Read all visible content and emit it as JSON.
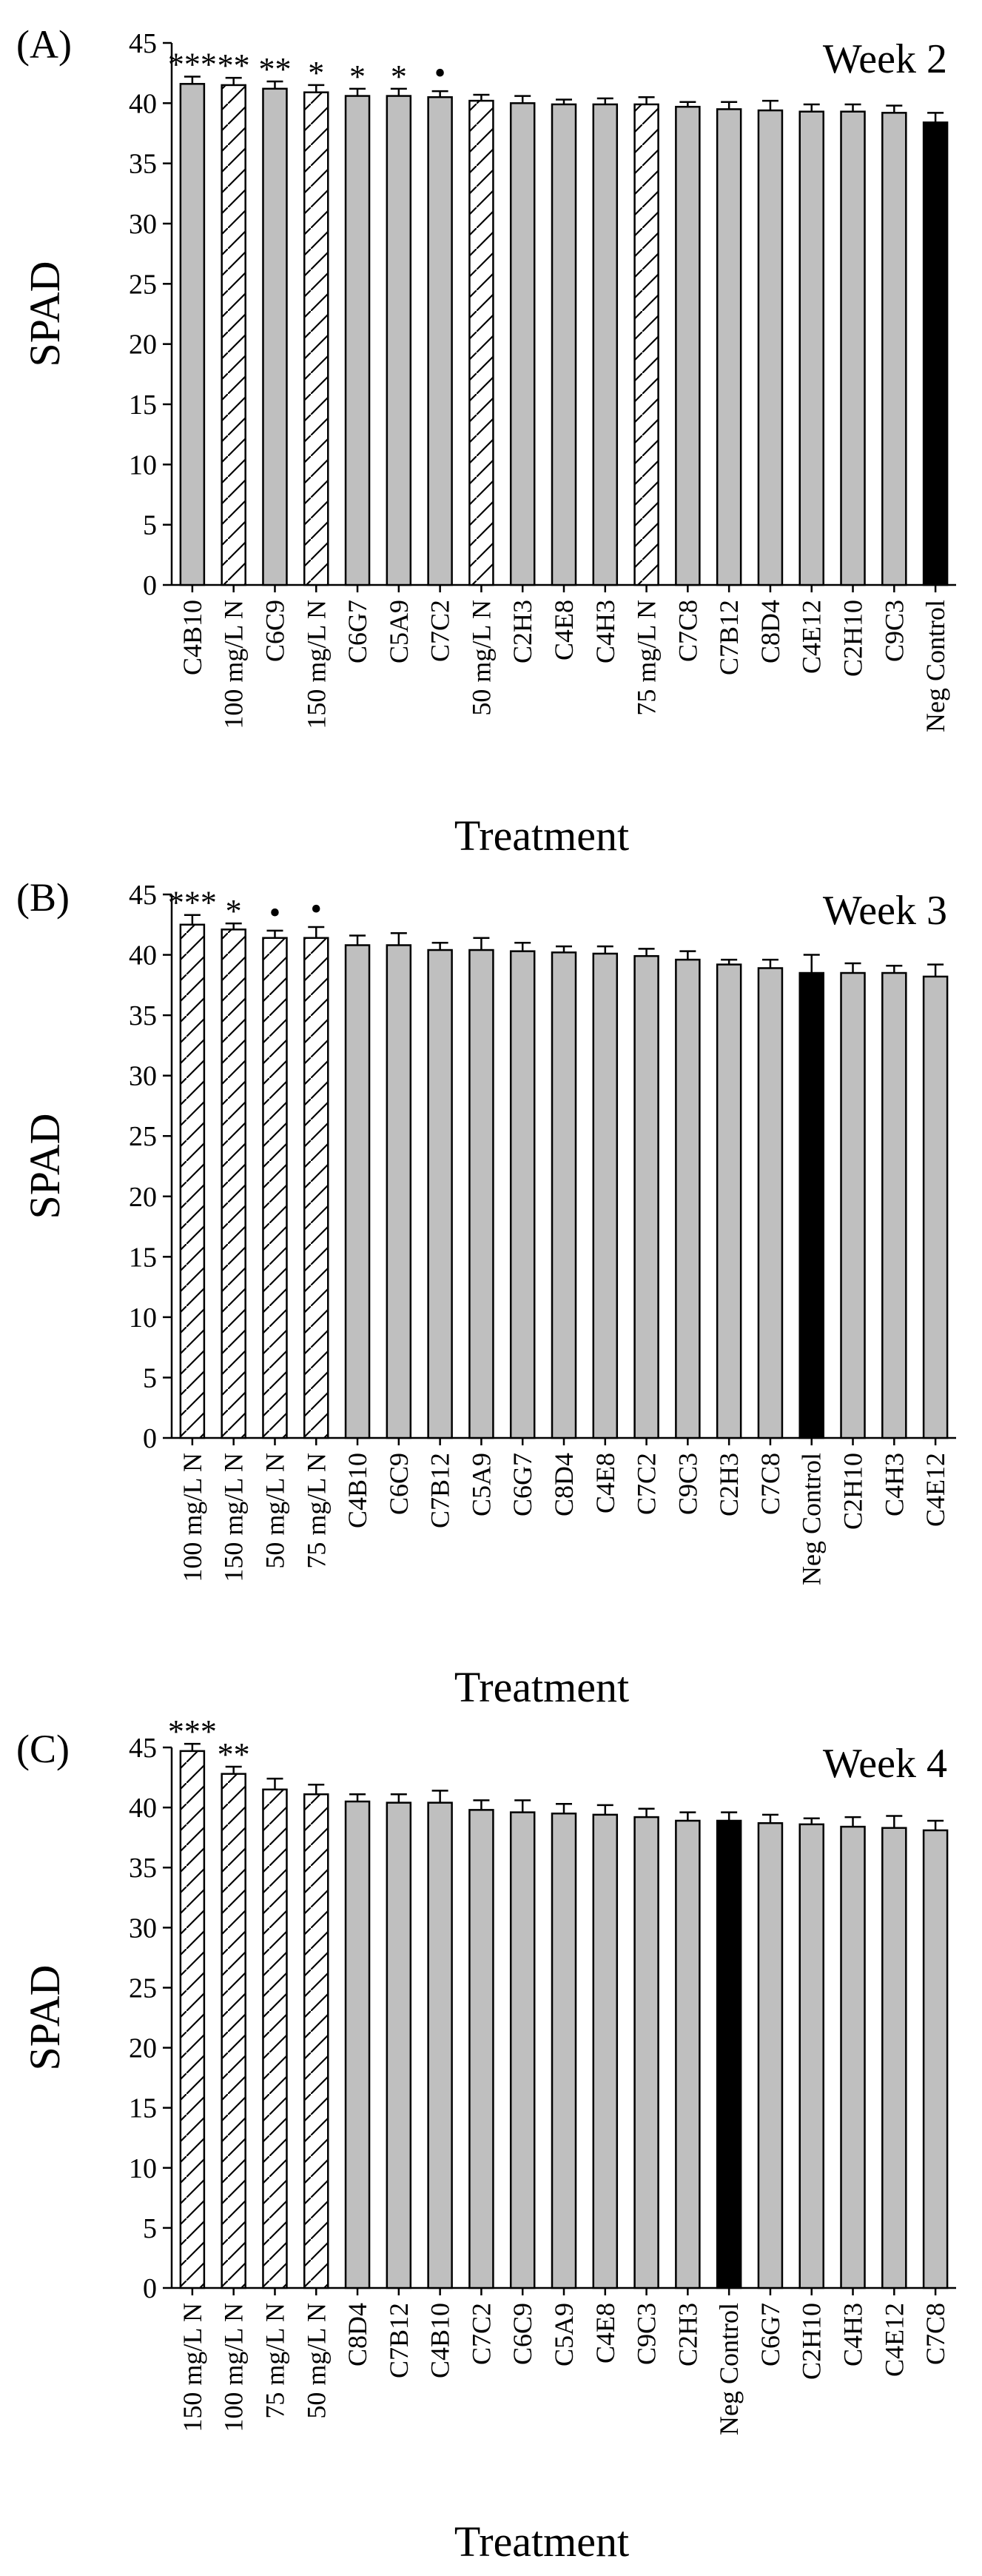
{
  "chart_data": [
    {
      "type": "bar",
      "panel_label": "(A)",
      "title": "Week 2",
      "xlabel": "Treatment",
      "ylabel": "SPAD",
      "ylim": [
        0,
        45
      ],
      "yticks": [
        "0",
        "5",
        "10",
        "15",
        "20",
        "25",
        "30",
        "35",
        "40",
        "45"
      ],
      "bars": [
        {
          "label": "C4B10",
          "value": 41.6,
          "error": 0.6,
          "kind": "gray",
          "sig": "***"
        },
        {
          "label": "100 mg/L N",
          "value": 41.5,
          "error": 0.6,
          "kind": "hatch",
          "sig": "**"
        },
        {
          "label": "C6C9",
          "value": 41.2,
          "error": 0.6,
          "kind": "gray",
          "sig": "**"
        },
        {
          "label": "150 mg/L N",
          "value": 40.9,
          "error": 0.6,
          "kind": "hatch",
          "sig": "*"
        },
        {
          "label": "C6G7",
          "value": 40.6,
          "error": 0.6,
          "kind": "gray",
          "sig": "*"
        },
        {
          "label": "C5A9",
          "value": 40.6,
          "error": 0.6,
          "kind": "gray",
          "sig": "*"
        },
        {
          "label": "C7C2",
          "value": 40.5,
          "error": 0.5,
          "kind": "gray",
          "sig": "•"
        },
        {
          "label": "50 mg/L N",
          "value": 40.2,
          "error": 0.5,
          "kind": "hatch",
          "sig": ""
        },
        {
          "label": "C2H3",
          "value": 40.0,
          "error": 0.6,
          "kind": "gray",
          "sig": ""
        },
        {
          "label": "C4E8",
          "value": 39.9,
          "error": 0.4,
          "kind": "gray",
          "sig": ""
        },
        {
          "label": "C4H3",
          "value": 39.9,
          "error": 0.5,
          "kind": "gray",
          "sig": ""
        },
        {
          "label": "75 mg/L N",
          "value": 39.9,
          "error": 0.6,
          "kind": "hatch",
          "sig": ""
        },
        {
          "label": "C7C8",
          "value": 39.7,
          "error": 0.4,
          "kind": "gray",
          "sig": ""
        },
        {
          "label": "C7B12",
          "value": 39.5,
          "error": 0.6,
          "kind": "gray",
          "sig": ""
        },
        {
          "label": "C8D4",
          "value": 39.4,
          "error": 0.8,
          "kind": "gray",
          "sig": ""
        },
        {
          "label": "C4E12",
          "value": 39.3,
          "error": 0.6,
          "kind": "gray",
          "sig": ""
        },
        {
          "label": "C2H10",
          "value": 39.3,
          "error": 0.6,
          "kind": "gray",
          "sig": ""
        },
        {
          "label": "C9C3",
          "value": 39.2,
          "error": 0.6,
          "kind": "gray",
          "sig": ""
        },
        {
          "label": "Neg Control",
          "value": 38.4,
          "error": 0.8,
          "kind": "black",
          "sig": ""
        }
      ]
    },
    {
      "type": "bar",
      "panel_label": "(B)",
      "title": "Week 3",
      "xlabel": "Treatment",
      "ylabel": "SPAD",
      "ylim": [
        0,
        45
      ],
      "yticks": [
        "0",
        "5",
        "10",
        "15",
        "20",
        "25",
        "30",
        "35",
        "40",
        "45"
      ],
      "bars": [
        {
          "label": "100 mg/L N",
          "value": 42.5,
          "error": 0.8,
          "kind": "hatch",
          "sig": "***"
        },
        {
          "label": "150 mg/L N",
          "value": 42.1,
          "error": 0.5,
          "kind": "hatch",
          "sig": "*"
        },
        {
          "label": "50 mg/L N",
          "value": 41.4,
          "error": 0.6,
          "kind": "hatch",
          "sig": "•"
        },
        {
          "label": "75 mg/L N",
          "value": 41.4,
          "error": 0.9,
          "kind": "hatch",
          "sig": "•"
        },
        {
          "label": "C4B10",
          "value": 40.8,
          "error": 0.8,
          "kind": "gray",
          "sig": ""
        },
        {
          "label": "C6C9",
          "value": 40.8,
          "error": 1.0,
          "kind": "gray",
          "sig": ""
        },
        {
          "label": "C7B12",
          "value": 40.4,
          "error": 0.6,
          "kind": "gray",
          "sig": ""
        },
        {
          "label": "C5A9",
          "value": 40.4,
          "error": 1.0,
          "kind": "gray",
          "sig": ""
        },
        {
          "label": "C6G7",
          "value": 40.3,
          "error": 0.7,
          "kind": "gray",
          "sig": ""
        },
        {
          "label": "C8D4",
          "value": 40.2,
          "error": 0.5,
          "kind": "gray",
          "sig": ""
        },
        {
          "label": "C4E8",
          "value": 40.1,
          "error": 0.6,
          "kind": "gray",
          "sig": ""
        },
        {
          "label": "C7C2",
          "value": 39.9,
          "error": 0.6,
          "kind": "gray",
          "sig": ""
        },
        {
          "label": "C9C3",
          "value": 39.6,
          "error": 0.7,
          "kind": "gray",
          "sig": ""
        },
        {
          "label": "C2H3",
          "value": 39.2,
          "error": 0.4,
          "kind": "gray",
          "sig": ""
        },
        {
          "label": "C7C8",
          "value": 38.9,
          "error": 0.7,
          "kind": "gray",
          "sig": ""
        },
        {
          "label": "Neg Control",
          "value": 38.5,
          "error": 1.5,
          "kind": "black",
          "sig": ""
        },
        {
          "label": "C2H10",
          "value": 38.5,
          "error": 0.8,
          "kind": "gray",
          "sig": ""
        },
        {
          "label": "C4H3",
          "value": 38.5,
          "error": 0.6,
          "kind": "gray",
          "sig": ""
        },
        {
          "label": "C4E12",
          "value": 38.2,
          "error": 1.0,
          "kind": "gray",
          "sig": ""
        }
      ]
    },
    {
      "type": "bar",
      "panel_label": "(C)",
      "title": "Week 4",
      "xlabel": "Treatment",
      "ylabel": "SPAD",
      "ylim": [
        0,
        45
      ],
      "yticks": [
        "0",
        "5",
        "10",
        "15",
        "20",
        "25",
        "30",
        "35",
        "40",
        "45"
      ],
      "bars": [
        {
          "label": "150 mg/L N",
          "value": 44.7,
          "error": 0.6,
          "kind": "hatch",
          "sig": "***"
        },
        {
          "label": "100 mg/L N",
          "value": 42.8,
          "error": 0.6,
          "kind": "hatch",
          "sig": "**"
        },
        {
          "label": "75 mg/L N",
          "value": 41.5,
          "error": 0.9,
          "kind": "hatch",
          "sig": ""
        },
        {
          "label": "50 mg/L N",
          "value": 41.1,
          "error": 0.8,
          "kind": "hatch",
          "sig": ""
        },
        {
          "label": "C8D4",
          "value": 40.5,
          "error": 0.6,
          "kind": "gray",
          "sig": ""
        },
        {
          "label": "C7B12",
          "value": 40.4,
          "error": 0.7,
          "kind": "gray",
          "sig": ""
        },
        {
          "label": "C4B10",
          "value": 40.4,
          "error": 1.0,
          "kind": "gray",
          "sig": ""
        },
        {
          "label": "C7C2",
          "value": 39.8,
          "error": 0.8,
          "kind": "gray",
          "sig": ""
        },
        {
          "label": "C6C9",
          "value": 39.6,
          "error": 1.0,
          "kind": "gray",
          "sig": ""
        },
        {
          "label": "C5A9",
          "value": 39.5,
          "error": 0.8,
          "kind": "gray",
          "sig": ""
        },
        {
          "label": "C4E8",
          "value": 39.4,
          "error": 0.8,
          "kind": "gray",
          "sig": ""
        },
        {
          "label": "C9C3",
          "value": 39.2,
          "error": 0.7,
          "kind": "gray",
          "sig": ""
        },
        {
          "label": "C2H3",
          "value": 38.9,
          "error": 0.7,
          "kind": "gray",
          "sig": ""
        },
        {
          "label": "Neg Control",
          "value": 38.9,
          "error": 0.7,
          "kind": "black",
          "sig": ""
        },
        {
          "label": "C6G7",
          "value": 38.7,
          "error": 0.7,
          "kind": "gray",
          "sig": ""
        },
        {
          "label": "C2H10",
          "value": 38.6,
          "error": 0.5,
          "kind": "gray",
          "sig": ""
        },
        {
          "label": "C4H3",
          "value": 38.4,
          "error": 0.8,
          "kind": "gray",
          "sig": ""
        },
        {
          "label": "C4E12",
          "value": 38.3,
          "error": 1.0,
          "kind": "gray",
          "sig": ""
        },
        {
          "label": "C7C8",
          "value": 38.1,
          "error": 0.8,
          "kind": "gray",
          "sig": ""
        }
      ]
    }
  ],
  "colors": {
    "gray": "#bfbfbf",
    "hatch": "#ffffff",
    "black": "#000000",
    "axis": "#000000"
  }
}
